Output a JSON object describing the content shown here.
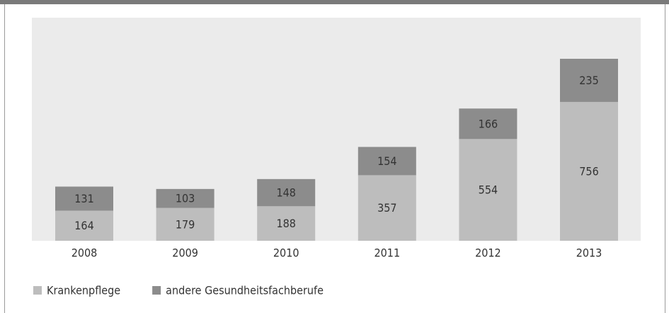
{
  "chart_data": {
    "type": "stacked_bar",
    "categories": [
      "2008",
      "2009",
      "2010",
      "2011",
      "2012",
      "2013"
    ],
    "series": [
      {
        "name": "Krankenpflege",
        "color": "#bdbdbd",
        "values": [
          164,
          179,
          188,
          357,
          554,
          756
        ]
      },
      {
        "name": "andere Gesundheitsfachberufe",
        "color": "#8c8c8c",
        "values": [
          131,
          103,
          148,
          154,
          166,
          235
        ]
      }
    ],
    "legend": "bottom-left"
  }
}
